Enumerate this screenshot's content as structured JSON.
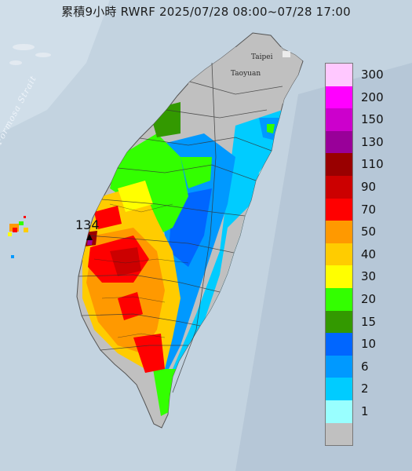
{
  "title": "累積9小時 RWRF 2025/07/28 08:00~07/28 17:00",
  "map": {
    "sea_label": "Formosa Strait",
    "cities": [
      "Taipei",
      "Taoyuan"
    ],
    "max_marker_value": "134"
  },
  "legend": {
    "items": [
      {
        "label": "300",
        "color": "#ffc8ff"
      },
      {
        "label": "200",
        "color": "#ff00ff"
      },
      {
        "label": "150",
        "color": "#cc00cc"
      },
      {
        "label": "130",
        "color": "#990099"
      },
      {
        "label": "110",
        "color": "#990000"
      },
      {
        "label": "90",
        "color": "#cc0000"
      },
      {
        "label": "70",
        "color": "#ff0000"
      },
      {
        "label": "50",
        "color": "#ff9900"
      },
      {
        "label": "40",
        "color": "#ffcc00"
      },
      {
        "label": "30",
        "color": "#ffff00"
      },
      {
        "label": "20",
        "color": "#33ff00"
      },
      {
        "label": "15",
        "color": "#339900"
      },
      {
        "label": "10",
        "color": "#0066ff"
      },
      {
        "label": "6",
        "color": "#0099ff"
      },
      {
        "label": "2",
        "color": "#00ccff"
      },
      {
        "label": "1",
        "color": "#99ffff"
      },
      {
        "label": "",
        "color": "#c0c0c0"
      }
    ]
  }
}
